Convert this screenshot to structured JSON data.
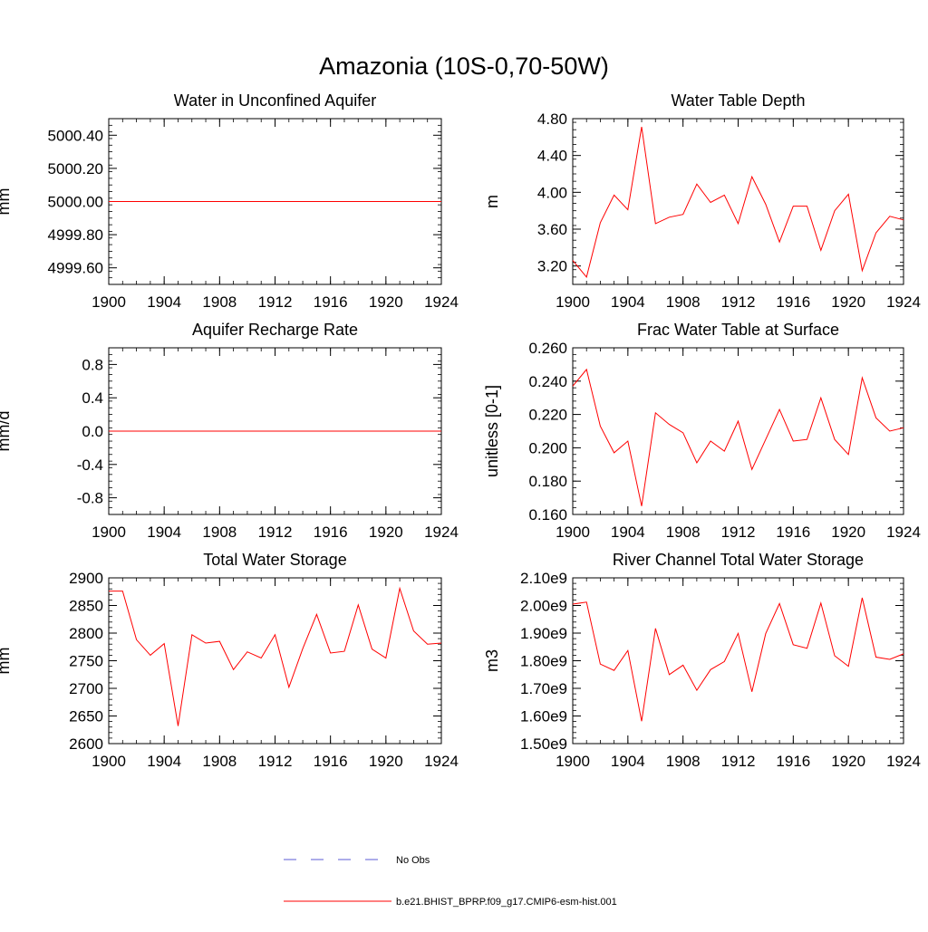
{
  "title": "Amazonia (10S-0,70-50W)",
  "legend": {
    "placement": "bottom-center",
    "items": [
      {
        "label": "No Obs",
        "style": "dashed",
        "color": "#5b5bd6"
      },
      {
        "label": "b.e21.BHIST_BPRP.f09_g17.CMIP6-esm-hist.001",
        "style": "solid",
        "color": "#ff0000"
      }
    ]
  },
  "chart_data": [
    {
      "type": "line",
      "title": "Water in Unconfined Aquifer",
      "ylabel": "mm",
      "xlim": [
        1900,
        1924
      ],
      "ylim": [
        4999.5,
        5000.5
      ],
      "xticks": [
        1900,
        1904,
        1908,
        1912,
        1916,
        1920,
        1924
      ],
      "xtick_labels": [
        "1900",
        "1904",
        "1908",
        "1912",
        "1916",
        "1920",
        "1924"
      ],
      "yticks": [
        4999.6,
        4999.8,
        5000.0,
        5000.2,
        5000.4
      ],
      "ytick_labels": [
        "4999.60",
        "4999.80",
        "5000.00",
        "5000.20",
        "5000.40"
      ],
      "series": [
        {
          "color": "#ff0000",
          "x": [
            1900,
            1901,
            1902,
            1903,
            1904,
            1905,
            1906,
            1907,
            1908,
            1909,
            1910,
            1911,
            1912,
            1913,
            1914,
            1915,
            1916,
            1917,
            1918,
            1919,
            1920,
            1921,
            1922,
            1923,
            1924
          ],
          "y": [
            5000,
            5000,
            5000,
            5000,
            5000,
            5000,
            5000,
            5000,
            5000,
            5000,
            5000,
            5000,
            5000,
            5000,
            5000,
            5000,
            5000,
            5000,
            5000,
            5000,
            5000,
            5000,
            5000,
            5000,
            5000
          ]
        }
      ]
    },
    {
      "type": "line",
      "title": "Water Table Depth",
      "ylabel": "m",
      "xlim": [
        1900,
        1924
      ],
      "ylim": [
        3.0,
        4.8
      ],
      "xticks": [
        1900,
        1904,
        1908,
        1912,
        1916,
        1920,
        1924
      ],
      "xtick_labels": [
        "1900",
        "1904",
        "1908",
        "1912",
        "1916",
        "1920",
        "1924"
      ],
      "yticks": [
        3.2,
        3.6,
        4.0,
        4.4,
        4.8
      ],
      "ytick_labels": [
        "3.20",
        "3.60",
        "4.00",
        "4.40",
        "4.80"
      ],
      "series": [
        {
          "color": "#ff0000",
          "x": [
            1900,
            1901,
            1902,
            1903,
            1904,
            1905,
            1906,
            1907,
            1908,
            1909,
            1910,
            1911,
            1912,
            1913,
            1914,
            1915,
            1916,
            1917,
            1918,
            1919,
            1920,
            1921,
            1922,
            1923,
            1924
          ],
          "y": [
            3.26,
            3.08,
            3.67,
            3.97,
            3.81,
            4.71,
            3.66,
            3.73,
            3.76,
            4.09,
            3.89,
            3.97,
            3.66,
            4.17,
            3.87,
            3.46,
            3.85,
            3.85,
            3.37,
            3.8,
            3.98,
            3.15,
            3.56,
            3.74,
            3.7
          ]
        }
      ]
    },
    {
      "type": "line",
      "title": "Aquifer Recharge Rate",
      "ylabel": "mm/d",
      "xlim": [
        1900,
        1924
      ],
      "ylim": [
        -1.0,
        1.0
      ],
      "xticks": [
        1900,
        1904,
        1908,
        1912,
        1916,
        1920,
        1924
      ],
      "xtick_labels": [
        "1900",
        "1904",
        "1908",
        "1912",
        "1916",
        "1920",
        "1924"
      ],
      "yticks": [
        -0.8,
        -0.4,
        0.0,
        0.4,
        0.8
      ],
      "ytick_labels": [
        "-0.8",
        "-0.4",
        "0.0",
        "0.4",
        "0.8"
      ],
      "series": [
        {
          "color": "#ff0000",
          "x": [
            1900,
            1901,
            1902,
            1903,
            1904,
            1905,
            1906,
            1907,
            1908,
            1909,
            1910,
            1911,
            1912,
            1913,
            1914,
            1915,
            1916,
            1917,
            1918,
            1919,
            1920,
            1921,
            1922,
            1923,
            1924
          ],
          "y": [
            0,
            0,
            0,
            0,
            0,
            0,
            0,
            0,
            0,
            0,
            0,
            0,
            0,
            0,
            0,
            0,
            0,
            0,
            0,
            0,
            0,
            0,
            0,
            0,
            0
          ]
        }
      ]
    },
    {
      "type": "line",
      "title": "Frac Water Table at Surface",
      "ylabel": "unitless [0-1]",
      "xlim": [
        1900,
        1924
      ],
      "ylim": [
        0.16,
        0.26
      ],
      "xticks": [
        1900,
        1904,
        1908,
        1912,
        1916,
        1920,
        1924
      ],
      "xtick_labels": [
        "1900",
        "1904",
        "1908",
        "1912",
        "1916",
        "1920",
        "1924"
      ],
      "yticks": [
        0.16,
        0.18,
        0.2,
        0.22,
        0.24,
        0.26
      ],
      "ytick_labels": [
        "0.160",
        "0.180",
        "0.200",
        "0.220",
        "0.240",
        "0.260"
      ],
      "series": [
        {
          "color": "#ff0000",
          "x": [
            1900,
            1901,
            1902,
            1903,
            1904,
            1905,
            1906,
            1907,
            1908,
            1909,
            1910,
            1911,
            1912,
            1913,
            1914,
            1915,
            1916,
            1917,
            1918,
            1919,
            1920,
            1921,
            1922,
            1923,
            1924
          ],
          "y": [
            0.237,
            0.247,
            0.213,
            0.197,
            0.204,
            0.165,
            0.221,
            0.214,
            0.209,
            0.191,
            0.204,
            0.198,
            0.216,
            0.187,
            0.205,
            0.223,
            0.204,
            0.205,
            0.23,
            0.205,
            0.196,
            0.242,
            0.218,
            0.21,
            0.212
          ]
        }
      ]
    },
    {
      "type": "line",
      "title": "Total Water Storage",
      "ylabel": "mm",
      "xlim": [
        1900,
        1924
      ],
      "ylim": [
        2600,
        2900
      ],
      "xticks": [
        1900,
        1904,
        1908,
        1912,
        1916,
        1920,
        1924
      ],
      "xtick_labels": [
        "1900",
        "1904",
        "1908",
        "1912",
        "1916",
        "1920",
        "1924"
      ],
      "yticks": [
        2600,
        2650,
        2700,
        2750,
        2800,
        2850,
        2900
      ],
      "ytick_labels": [
        "2600",
        "2650",
        "2700",
        "2750",
        "2800",
        "2850",
        "2900"
      ],
      "series": [
        {
          "color": "#ff0000",
          "x": [
            1900,
            1901,
            1902,
            1903,
            1904,
            1905,
            1906,
            1907,
            1908,
            1909,
            1910,
            1911,
            1912,
            1913,
            1914,
            1915,
            1916,
            1917,
            1918,
            1919,
            1920,
            1921,
            1922,
            1923,
            1924
          ],
          "y": [
            2876,
            2876,
            2788,
            2760,
            2781,
            2632,
            2797,
            2782,
            2785,
            2734,
            2766,
            2755,
            2797,
            2702,
            2772,
            2834,
            2764,
            2767,
            2851,
            2771,
            2755,
            2881,
            2804,
            2780,
            2782
          ]
        }
      ]
    },
    {
      "type": "line",
      "title": "River Channel Total Water Storage",
      "ylabel": "m3",
      "xlim": [
        1900,
        1924
      ],
      "ylim": [
        1500000000.0,
        2100000000.0
      ],
      "xticks": [
        1900,
        1904,
        1908,
        1912,
        1916,
        1920,
        1924
      ],
      "xtick_labels": [
        "1900",
        "1904",
        "1908",
        "1912",
        "1916",
        "1920",
        "1924"
      ],
      "yticks": [
        1500000000.0,
        1600000000.0,
        1700000000.0,
        1800000000.0,
        1900000000.0,
        2000000000.0,
        2100000000.0
      ],
      "ytick_labels": [
        "1.50e9",
        "1.60e9",
        "1.70e9",
        "1.80e9",
        "1.90e9",
        "2.00e9",
        "2.10e9"
      ],
      "series": [
        {
          "color": "#ff0000",
          "x": [
            1900,
            1901,
            1902,
            1903,
            1904,
            1905,
            1906,
            1907,
            1908,
            1909,
            1910,
            1911,
            1912,
            1913,
            1914,
            1915,
            1916,
            1917,
            1918,
            1919,
            1920,
            1921,
            1922,
            1923,
            1924
          ],
          "y": [
            2005000000.0,
            2012000000.0,
            1788000000.0,
            1765000000.0,
            1837000000.0,
            1581000000.0,
            1917000000.0,
            1750000000.0,
            1784000000.0,
            1693000000.0,
            1768000000.0,
            1797000000.0,
            1899000000.0,
            1688000000.0,
            1898000000.0,
            2007000000.0,
            1858000000.0,
            1845000000.0,
            2009000000.0,
            1818000000.0,
            1780000000.0,
            2028000000.0,
            1813000000.0,
            1805000000.0,
            1825000000.0
          ]
        }
      ]
    }
  ]
}
